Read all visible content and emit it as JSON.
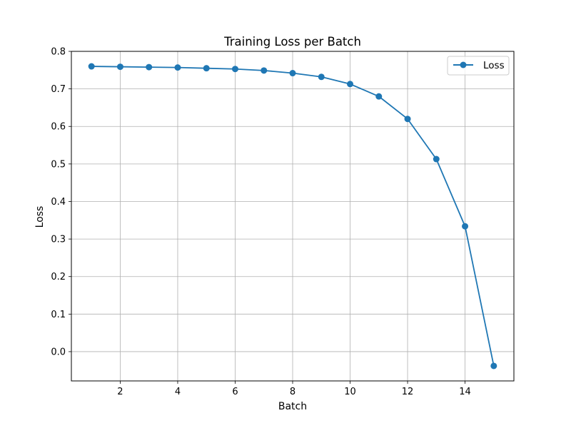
{
  "chart_data": {
    "type": "line",
    "title": "Training Loss per Batch",
    "xlabel": "Batch",
    "ylabel": "Loss",
    "xlim": [
      0.3,
      15.7
    ],
    "ylim": [
      -0.078,
      0.8
    ],
    "xticks": [
      2,
      4,
      6,
      8,
      10,
      12,
      14
    ],
    "yticks": [
      0.0,
      0.1,
      0.2,
      0.3,
      0.4,
      0.5,
      0.6,
      0.7,
      0.8
    ],
    "xtick_labels": [
      "2",
      "4",
      "6",
      "8",
      "10",
      "12",
      "14"
    ],
    "ytick_labels": [
      "0.0",
      "0.1",
      "0.2",
      "0.3",
      "0.4",
      "0.5",
      "0.6",
      "0.7",
      "0.8"
    ],
    "grid": true,
    "legend_position": "top-right",
    "series": [
      {
        "name": "Loss",
        "color": "#1f77b4",
        "marker": "circle",
        "x": [
          1,
          2,
          3,
          4,
          5,
          6,
          7,
          8,
          9,
          10,
          11,
          12,
          13,
          14,
          15
        ],
        "y": [
          0.76,
          0.759,
          0.758,
          0.757,
          0.755,
          0.753,
          0.749,
          0.742,
          0.732,
          0.713,
          0.68,
          0.62,
          0.513,
          0.334,
          -0.038
        ]
      }
    ]
  }
}
